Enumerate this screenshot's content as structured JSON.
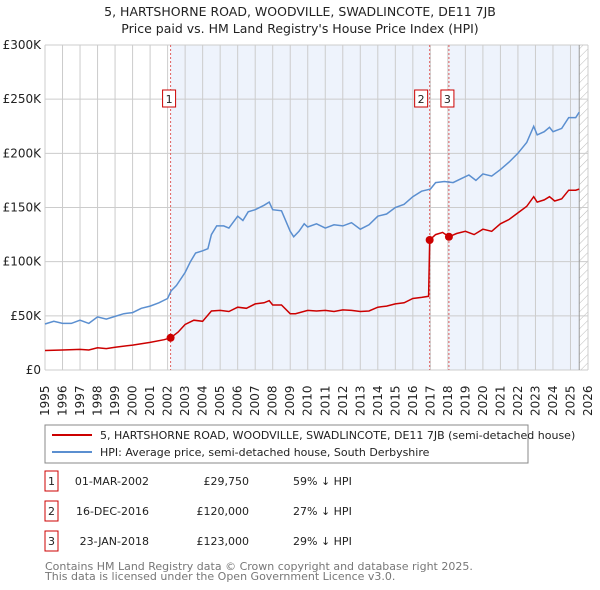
{
  "chart_data": {
    "type": "line",
    "title": "5, HARTSHORNE ROAD, WOODVILLE, SWADLINCOTE, DE11 7JB",
    "subtitle": "Price paid vs. HM Land Registry's House Price Index (HPI)",
    "xlim": [
      1995,
      2026
    ],
    "ylim": [
      0,
      300000
    ],
    "grid": true,
    "y_ticks": [
      {
        "v": 0,
        "label": "£0"
      },
      {
        "v": 50000,
        "label": "£50K"
      },
      {
        "v": 100000,
        "label": "£100K"
      },
      {
        "v": 150000,
        "label": "£150K"
      },
      {
        "v": 200000,
        "label": "£200K"
      },
      {
        "v": 250000,
        "label": "£250K"
      },
      {
        "v": 300000,
        "label": "£300K"
      }
    ],
    "x_ticks": [
      "1995",
      "1996",
      "1997",
      "1998",
      "1999",
      "2000",
      "2001",
      "2002",
      "2003",
      "2004",
      "2005",
      "2006",
      "2007",
      "2008",
      "2009",
      "2010",
      "2011",
      "2012",
      "2013",
      "2014",
      "2015",
      "2016",
      "2017",
      "2018",
      "2019",
      "2020",
      "2021",
      "2022",
      "2023",
      "2024",
      "2025",
      "2026"
    ],
    "legend_placement": "below",
    "series": [
      {
        "name": "5, HARTSHORNE ROAD, WOODVILLE, SWADLINCOTE, DE11 7JB (semi-detached house)",
        "color": "#cc0000",
        "x": [
          1995,
          1996,
          1997,
          1997.5,
          1998,
          1998.5,
          1999,
          2000,
          2001,
          2001.8,
          2002.17,
          2002.6,
          2003,
          2003.5,
          2004,
          2004.5,
          2005,
          2005.5,
          2006,
          2006.5,
          2007,
          2007.5,
          2007.8,
          2008,
          2008.5,
          2009,
          2009.3,
          2010,
          2010.5,
          2011,
          2011.5,
          2012,
          2012.5,
          2013,
          2013.5,
          2014,
          2014.5,
          2015,
          2015.5,
          2016,
          2016.5,
          2016.9,
          2016.96,
          2017.3,
          2017.7,
          2018.06,
          2018.5,
          2019,
          2019.5,
          2020,
          2020.5,
          2021,
          2021.5,
          2022,
          2022.5,
          2022.9,
          2023.1,
          2023.5,
          2023.8,
          2024.1,
          2024.5,
          2024.9,
          2025.3,
          2025.5
        ],
        "y": [
          18000,
          18500,
          19000,
          18500,
          20500,
          19800,
          21000,
          23000,
          25500,
          28000,
          29750,
          35000,
          42000,
          46000,
          45000,
          54500,
          55000,
          54000,
          58000,
          57000,
          61000,
          62000,
          64000,
          60000,
          60000,
          52000,
          52000,
          55000,
          54500,
          55000,
          54000,
          55500,
          55000,
          54000,
          54500,
          58000,
          59000,
          61000,
          62000,
          66000,
          67000,
          68000,
          120000,
          125000,
          127000,
          123000,
          126000,
          128000,
          125000,
          130000,
          128000,
          135000,
          139000,
          145000,
          151000,
          160000,
          155000,
          157000,
          160000,
          156000,
          158000,
          166000,
          166000,
          167000
        ]
      },
      {
        "name": "HPI: Average price, semi-detached house, South Derbyshire",
        "color": "#5b8fd0",
        "x": [
          1995,
          1995.5,
          1996,
          1996.5,
          1997,
          1997.5,
          1998,
          1998.5,
          1999,
          1999.5,
          2000,
          2000.5,
          2001,
          2001.5,
          2002,
          2002.2,
          2002.5,
          2003,
          2003.3,
          2003.6,
          2004,
          2004.3,
          2004.5,
          2004.8,
          2005.2,
          2005.5,
          2006,
          2006.3,
          2006.6,
          2007,
          2007.5,
          2007.8,
          2008,
          2008.5,
          2009,
          2009.2,
          2009.5,
          2009.8,
          2010,
          2010.5,
          2011,
          2011.5,
          2012,
          2012.5,
          2013,
          2013.5,
          2014,
          2014.5,
          2015,
          2015.5,
          2016,
          2016.5,
          2017,
          2017.3,
          2017.8,
          2018.3,
          2018.8,
          2019.2,
          2019.6,
          2020,
          2020.5,
          2021,
          2021.5,
          2022,
          2022.5,
          2022.9,
          2023.1,
          2023.5,
          2023.8,
          2024,
          2024.5,
          2024.9,
          2025.3,
          2025.5
        ],
        "y": [
          42500,
          45000,
          43000,
          43000,
          46000,
          43000,
          49000,
          47000,
          49500,
          52000,
          53000,
          57000,
          59000,
          62000,
          66000,
          73000,
          78000,
          90000,
          100000,
          108000,
          110000,
          112000,
          125000,
          133000,
          133000,
          131000,
          142000,
          138000,
          146000,
          148000,
          152000,
          155000,
          148000,
          147000,
          128000,
          123000,
          128000,
          135000,
          132000,
          135000,
          131000,
          134000,
          133000,
          136000,
          130000,
          134000,
          142000,
          144000,
          150000,
          153000,
          160000,
          165000,
          167000,
          173000,
          174000,
          173000,
          177000,
          180000,
          175000,
          181000,
          179000,
          185000,
          192000,
          200000,
          210000,
          225000,
          217000,
          220000,
          224000,
          220000,
          223000,
          233000,
          233000,
          238000
        ]
      }
    ],
    "sales": [
      {
        "id": "1",
        "x": 2002.17,
        "date": "01-MAR-2002",
        "price_value": 29750,
        "price": "£29,750",
        "hpi": "59% ↓ HPI"
      },
      {
        "id": "2",
        "x": 2016.96,
        "date": "16-DEC-2016",
        "price_value": 120000,
        "price": "£120,000",
        "hpi": "27% ↓ HPI"
      },
      {
        "id": "3",
        "x": 2018.06,
        "date": "23-JAN-2018",
        "price_value": 123000,
        "price": "£123,000",
        "hpi": "29% ↓ HPI"
      }
    ],
    "forecast_from": 2025.5
  },
  "footer": {
    "line1": "Contains HM Land Registry data © Crown copyright and database right 2025.",
    "line2": "This data is licensed under the Open Government Licence v3.0."
  }
}
